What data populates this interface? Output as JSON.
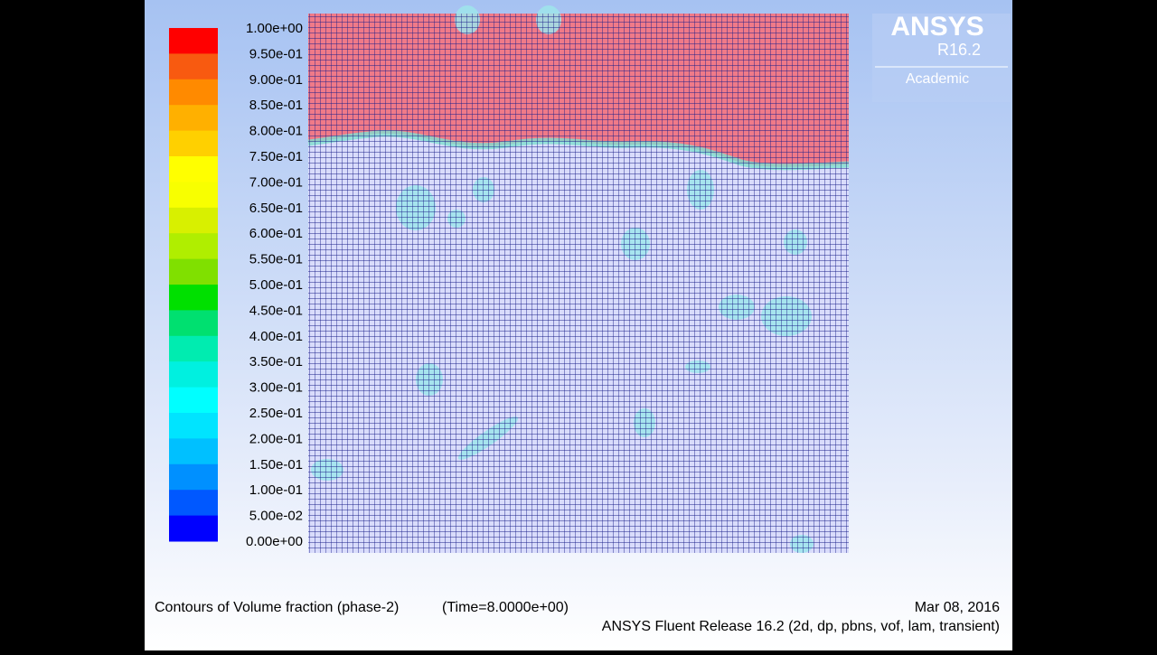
{
  "colorbar": {
    "labels": [
      "1.00e+00",
      "9.50e-01",
      "9.00e-01",
      "8.50e-01",
      "8.00e-01",
      "7.50e-01",
      "7.00e-01",
      "6.50e-01",
      "6.00e-01",
      "5.50e-01",
      "5.00e-01",
      "4.50e-01",
      "4.00e-01",
      "3.50e-01",
      "3.00e-01",
      "2.50e-01",
      "2.00e-01",
      "1.50e-01",
      "1.00e-01",
      "5.00e-02",
      "0.00e+00"
    ],
    "colors": [
      "#ff0000",
      "#f85a10",
      "#ff8a00",
      "#ffb000",
      "#ffd000",
      "#ffff00",
      "#f8ff00",
      "#d8f000",
      "#b0ee00",
      "#80e000",
      "#00e000",
      "#00e070",
      "#00ecb0",
      "#00f0e0",
      "#00ffff",
      "#00e4ff",
      "#00c0ff",
      "#0090ff",
      "#0058ff",
      "#0000ff"
    ]
  },
  "logo": {
    "brand": "ANSYS",
    "version": "R16.2",
    "edition": "Academic"
  },
  "footer": {
    "title": "Contours of Volume fraction (phase-2)",
    "time": "(Time=8.0000e+00)",
    "date": "Mar 08, 2016",
    "release": "ANSYS Fluent Release 16.2 (2d, dp, pbns, vof, lam, transient)"
  }
}
